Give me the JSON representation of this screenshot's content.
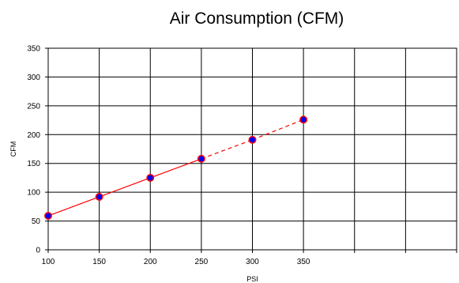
{
  "chart_data": {
    "type": "line",
    "title": "Air Consumption (CFM)",
    "xlabel": "PSI",
    "ylabel": "CFM",
    "xlim": [
      100,
      500
    ],
    "ylim": [
      0,
      350
    ],
    "x_ticks": [
      100,
      150,
      200,
      250,
      300,
      350,
      400,
      450,
      500
    ],
    "x_tick_labels": [
      "100",
      "150",
      "200",
      "250",
      "300",
      "350",
      "",
      "",
      ""
    ],
    "y_ticks": [
      0,
      50,
      100,
      150,
      200,
      250,
      300,
      350
    ],
    "y_tick_labels": [
      "0",
      "50",
      "100",
      "150",
      "200",
      "250",
      "300",
      "350"
    ],
    "grid": true,
    "legend": "none",
    "series": [
      {
        "x": [
          100,
          150,
          200,
          250,
          300,
          350
        ],
        "y": [
          59,
          92,
          125,
          158,
          191,
          226
        ],
        "line_color": "#ff0000",
        "marker_fill": "#0000ff",
        "marker_edge": "#ff0000",
        "dashed_from_x": 250
      }
    ]
  }
}
